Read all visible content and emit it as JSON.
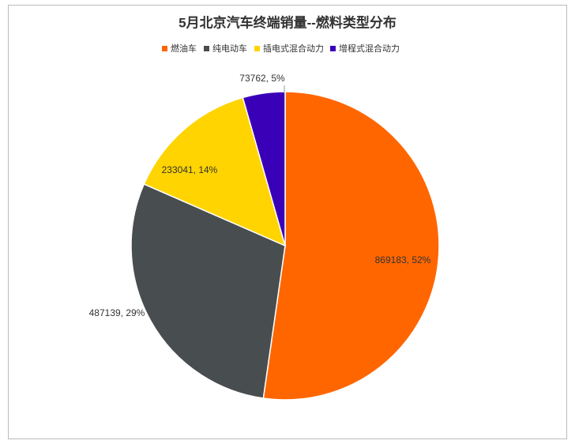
{
  "chart_data": {
    "type": "pie",
    "title": "5月北京汽车终端销量--燃料类型分布",
    "categories": [
      "燃油车",
      "纯电动车",
      "插电式混合动力",
      "增程式混合动力"
    ],
    "values": [
      869183,
      487139,
      233041,
      73762
    ],
    "value_labels": [
      "869183, 52%",
      "487139, 29%",
      "233041, 14%",
      "73762, 5%"
    ],
    "colors": [
      "#ff6600",
      "#484d50",
      "#ffd400",
      "#3a00b8"
    ],
    "legend": "top"
  }
}
